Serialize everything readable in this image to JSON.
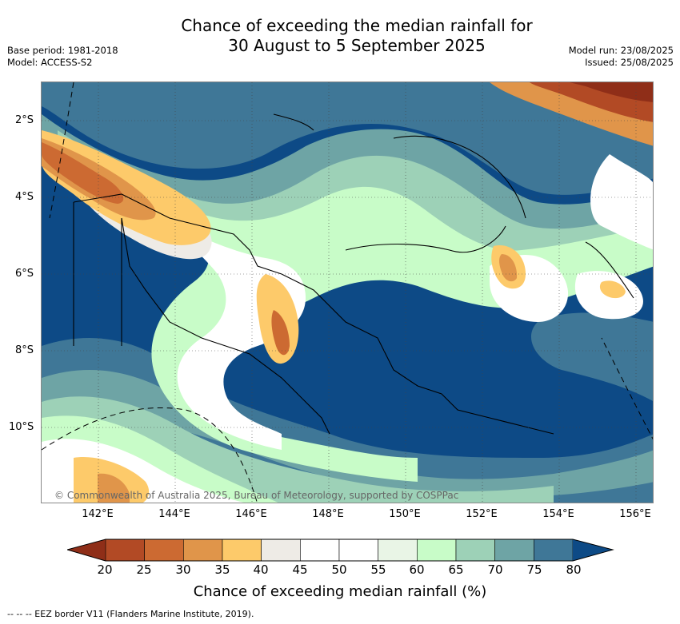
{
  "title": {
    "line1": "Chance of exceeding the median rainfall for",
    "line2": "30 August to 5 September 2025"
  },
  "meta": {
    "base_period": "Base period: 1981-2018",
    "model": "Model: ACCESS-S2",
    "model_run": "Model run: 23/08/2025",
    "issued": "Issued: 25/08/2025"
  },
  "lat_ticks": [
    "2°S",
    "4°S",
    "6°S",
    "8°S",
    "10°S"
  ],
  "lon_ticks": [
    "142°E",
    "144°E",
    "146°E",
    "148°E",
    "150°E",
    "152°E",
    "154°E",
    "156°E"
  ],
  "copyright": "© Commonwealth of Australia 2025, Bureau of Meteorology, supported by COSPPac",
  "colorbar": {
    "ticks": [
      "20",
      "25",
      "30",
      "35",
      "40",
      "45",
      "50",
      "55",
      "60",
      "65",
      "70",
      "75",
      "80"
    ],
    "colors": [
      "#8f2e18",
      "#b24a25",
      "#cc6a32",
      "#e0954a",
      "#fdca6a",
      "#eeebe6",
      "#ffffff",
      "#ffffff",
      "#e9f5e6",
      "#c8fcc8",
      "#9dd1b7",
      "#6ea4a5",
      "#3f7797",
      "#0d4a86"
    ],
    "label": "Chance of exceeding median rainfall (%)"
  },
  "legend_text": "--  --  -- EEZ border V11 (Flanders Marine Institute, 2019)."
}
